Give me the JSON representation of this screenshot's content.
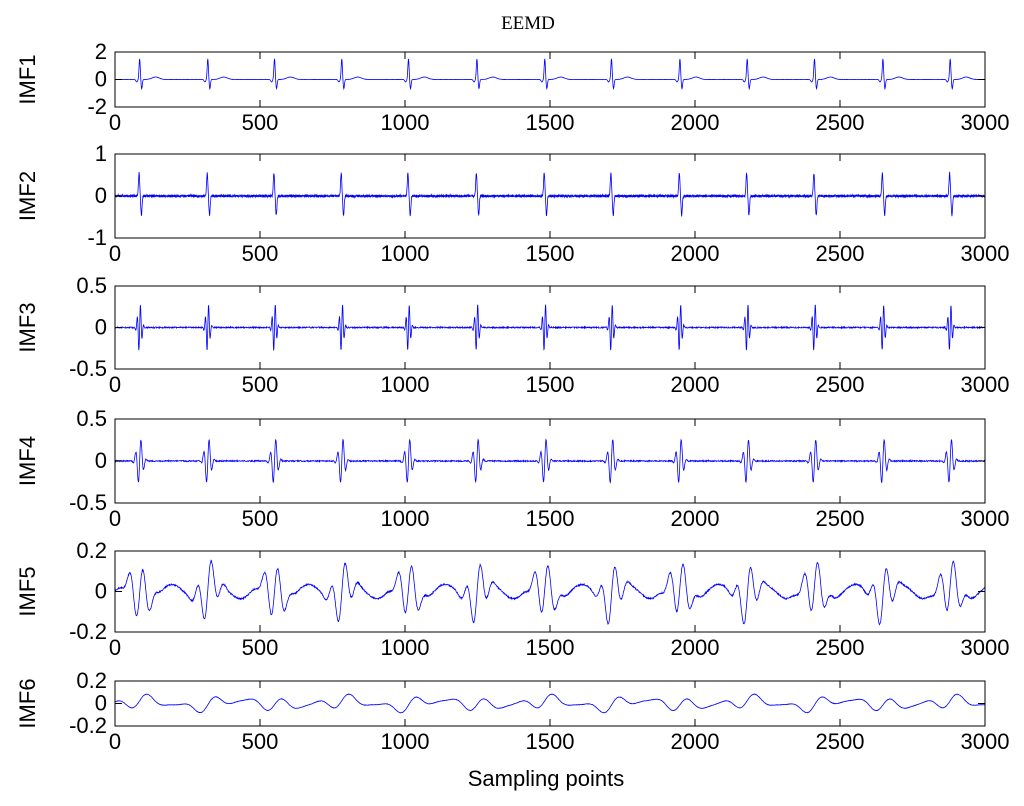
{
  "chart_data": {
    "type": "line",
    "title": "EEMD",
    "xlabel": "Sampling points",
    "xlim": [
      0,
      3000
    ],
    "xticks": [
      0,
      500,
      1000,
      1500,
      2000,
      2500,
      3000
    ],
    "line_color": "#0000ff",
    "grid": false,
    "beat_positions": [
      85,
      320,
      550,
      782,
      1012,
      1248,
      1482,
      1712,
      1948,
      2180,
      2412,
      2648,
      2880
    ],
    "subplots": [
      {
        "name": "IMF1",
        "ylabel": "IMF1",
        "ylim": [
          -2,
          2
        ],
        "yticks": [
          2,
          0,
          -2
        ],
        "ytick_labels": [
          "2",
          "0",
          "-2"
        ],
        "peak_amplitude": 1.5
      },
      {
        "name": "IMF2",
        "ylabel": "IMF2",
        "ylim": [
          -1,
          1
        ],
        "yticks": [
          1,
          0,
          -1
        ],
        "ytick_labels": [
          "1",
          "0",
          "-1"
        ],
        "peak_amplitude": 0.55
      },
      {
        "name": "IMF3",
        "ylabel": "IMF3",
        "ylim": [
          -0.5,
          0.5
        ],
        "yticks": [
          0.5,
          0,
          -0.5
        ],
        "ytick_labels": [
          "0.5",
          "0",
          "-0.5"
        ],
        "peak_amplitude": 0.3
      },
      {
        "name": "IMF4",
        "ylabel": "IMF4",
        "ylim": [
          -0.5,
          0.5
        ],
        "yticks": [
          0.5,
          0,
          -0.5
        ],
        "ytick_labels": [
          "0.5",
          "0",
          "-0.5"
        ],
        "peak_amplitude": 0.28
      },
      {
        "name": "IMF5",
        "ylabel": "IMF5",
        "ylim": [
          -0.2,
          0.2
        ],
        "yticks": [
          0.2,
          0,
          -0.2
        ],
        "ytick_labels": [
          "0.2",
          "0",
          "-0.2"
        ],
        "peak_amplitude": 0.14
      },
      {
        "name": "IMF6",
        "ylabel": "IMF6",
        "ylim": [
          -0.2,
          0.2
        ],
        "yticks": [
          0.2,
          0,
          -0.2
        ],
        "ytick_labels": [
          "0.2",
          "0",
          "-0.2"
        ],
        "peak_amplitude": 0.07
      }
    ]
  }
}
